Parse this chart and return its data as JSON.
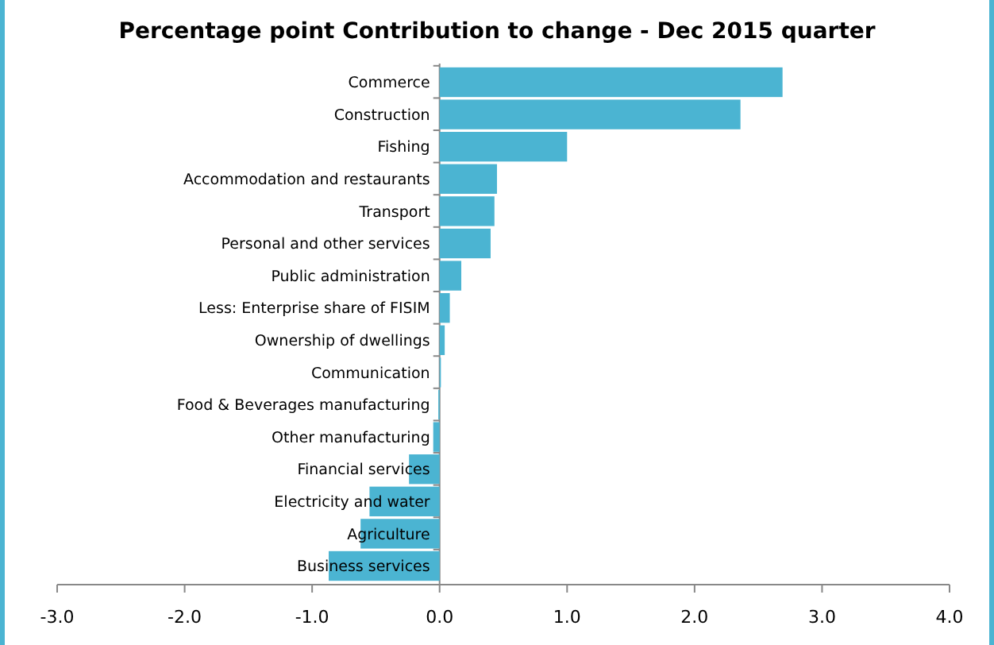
{
  "chart_data": {
    "type": "bar",
    "orientation": "horizontal",
    "title": "Percentage point Contribution to change - Dec 2015 quarter",
    "categories": [
      "Commerce",
      "Construction",
      "Fishing",
      "Accommodation and restaurants",
      "Transport",
      "Personal and other services",
      "Public administration",
      "Less: Enterprise share of FISIM",
      "Ownership of dwellings",
      "Communication",
      "Food & Beverages manufacturing",
      "Other manufacturing",
      "Financial services",
      "Electricity and water",
      "Agriculture",
      "Business services"
    ],
    "values": [
      2.69,
      2.36,
      1.0,
      0.45,
      0.43,
      0.4,
      0.17,
      0.08,
      0.04,
      0.01,
      -0.01,
      -0.05,
      -0.24,
      -0.55,
      -0.62,
      -0.87
    ],
    "color": "#4bb4d2",
    "xlim": [
      -3,
      4
    ],
    "xticks": [
      {
        "value": -3,
        "label": "-3.0"
      },
      {
        "value": -2,
        "label": "-2.0"
      },
      {
        "value": -1,
        "label": "-1.0"
      },
      {
        "value": 0,
        "label": "0.0"
      },
      {
        "value": 1,
        "label": "1.0"
      },
      {
        "value": 2,
        "label": "2.0"
      },
      {
        "value": 3,
        "label": "3.0"
      },
      {
        "value": 4,
        "label": "4.0"
      }
    ],
    "grid": false
  }
}
